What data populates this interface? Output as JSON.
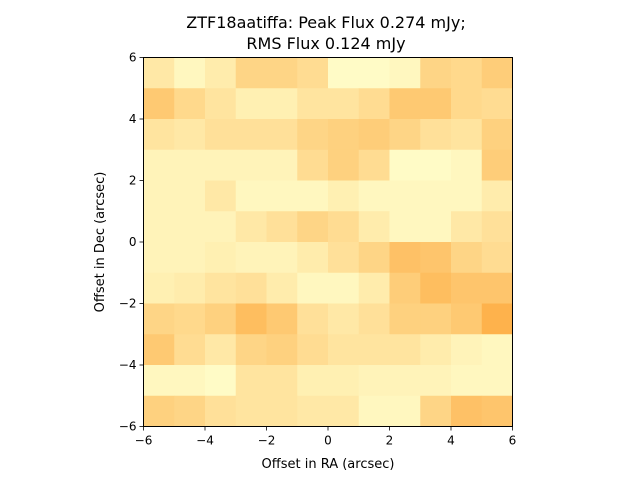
{
  "chart_data": {
    "type": "heatmap",
    "title": [
      "ZTF18aatiffa: Peak Flux 0.274 mJy;",
      "RMS Flux 0.124 mJy"
    ],
    "xlabel": "Offset in RA (arcsec)",
    "ylabel": "Offset in Dec (arcsec)",
    "xlim": [
      -6,
      6
    ],
    "ylim": [
      -6,
      6
    ],
    "xticks": [
      -6,
      -4,
      -2,
      0,
      2,
      4,
      6
    ],
    "yticks": [
      -6,
      -4,
      -2,
      0,
      2,
      4,
      6
    ],
    "grid": false,
    "colormap": "YlOrRd",
    "color_low": "#ffffcc",
    "color_high": "#feb24c",
    "rows_top_to_bottom": [
      [
        0.3,
        0.1,
        0.25,
        0.55,
        0.55,
        0.45,
        0.05,
        0.05,
        0.1,
        0.55,
        0.5,
        0.65
      ],
      [
        0.7,
        0.5,
        0.35,
        0.2,
        0.2,
        0.35,
        0.35,
        0.45,
        0.7,
        0.7,
        0.5,
        0.45
      ],
      [
        0.35,
        0.3,
        0.4,
        0.4,
        0.4,
        0.55,
        0.6,
        0.65,
        0.55,
        0.4,
        0.35,
        0.6
      ],
      [
        0.15,
        0.15,
        0.15,
        0.15,
        0.15,
        0.45,
        0.6,
        0.45,
        0.05,
        0.05,
        0.1,
        0.65
      ],
      [
        0.15,
        0.15,
        0.3,
        0.1,
        0.1,
        0.1,
        0.2,
        0.1,
        0.1,
        0.1,
        0.1,
        0.25
      ],
      [
        0.15,
        0.15,
        0.15,
        0.3,
        0.4,
        0.55,
        0.45,
        0.25,
        0.1,
        0.1,
        0.3,
        0.4
      ],
      [
        0.15,
        0.15,
        0.2,
        0.15,
        0.15,
        0.25,
        0.4,
        0.55,
        0.8,
        0.75,
        0.55,
        0.45
      ],
      [
        0.2,
        0.25,
        0.35,
        0.4,
        0.25,
        0.1,
        0.1,
        0.25,
        0.65,
        0.85,
        0.75,
        0.75
      ],
      [
        0.55,
        0.5,
        0.6,
        0.85,
        0.7,
        0.4,
        0.3,
        0.4,
        0.6,
        0.6,
        0.7,
        1.0
      ],
      [
        0.7,
        0.45,
        0.3,
        0.55,
        0.6,
        0.45,
        0.35,
        0.35,
        0.35,
        0.25,
        0.15,
        0.1
      ],
      [
        0.1,
        0.1,
        0.05,
        0.35,
        0.35,
        0.2,
        0.2,
        0.15,
        0.15,
        0.15,
        0.1,
        0.1
      ],
      [
        0.6,
        0.55,
        0.4,
        0.35,
        0.35,
        0.3,
        0.3,
        0.1,
        0.1,
        0.55,
        0.8,
        0.75
      ]
    ]
  }
}
